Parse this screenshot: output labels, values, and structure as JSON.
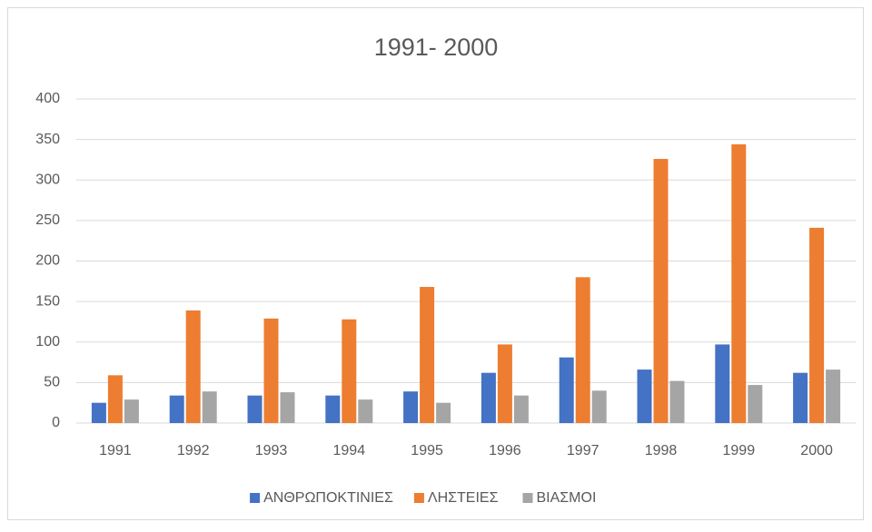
{
  "chart_data": {
    "type": "bar",
    "title": "1991- 2000",
    "categories": [
      "1991",
      "1992",
      "1993",
      "1994",
      "1995",
      "1996",
      "1997",
      "1998",
      "1999",
      "2000"
    ],
    "series": [
      {
        "name": "ΑΝΘΡΩΠΟΚΤΙΝΙΕΣ",
        "color": "#4472c4",
        "values": [
          25,
          34,
          34,
          34,
          39,
          62,
          81,
          66,
          97,
          62
        ]
      },
      {
        "name": "ΛΗΣΤΕΙΕΣ",
        "color": "#ed7d31",
        "values": [
          59,
          139,
          129,
          128,
          168,
          97,
          180,
          326,
          344,
          241
        ]
      },
      {
        "name": "ΒΙΑΣΜΟΙ",
        "color": "#a5a5a5",
        "values": [
          29,
          39,
          38,
          29,
          25,
          34,
          40,
          52,
          47,
          66
        ]
      }
    ],
    "ylim": [
      0,
      400
    ],
    "yticks": [
      0,
      50,
      100,
      150,
      200,
      250,
      300,
      350,
      400
    ],
    "grid": true,
    "legend": "bottom"
  }
}
